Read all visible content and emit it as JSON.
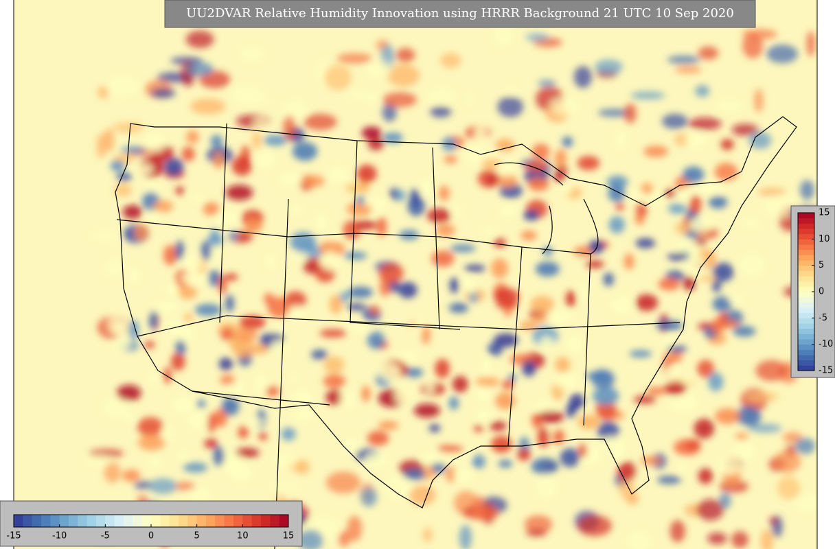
{
  "title": "UU2DVAR Relative Humidity Innovation using HRRR Background 21 UTC 10 Sep 2020",
  "colormap": [
    "#313695",
    "#4575b4",
    "#74add1",
    "#abd9e9",
    "#e0f3f8",
    "#ffffbf",
    "#fee090",
    "#fdae61",
    "#f46d43",
    "#d73027",
    "#a50026"
  ],
  "colorbars": [
    {
      "orientation": "horizontal",
      "lim": [
        -15,
        15
      ],
      "ticks": [
        -15,
        -10,
        -5,
        0,
        5,
        10,
        15
      ]
    },
    {
      "orientation": "vertical",
      "lim": [
        -15,
        15
      ],
      "ticks": [
        -15,
        -10,
        -5,
        0,
        5,
        10,
        15
      ]
    }
  ]
}
